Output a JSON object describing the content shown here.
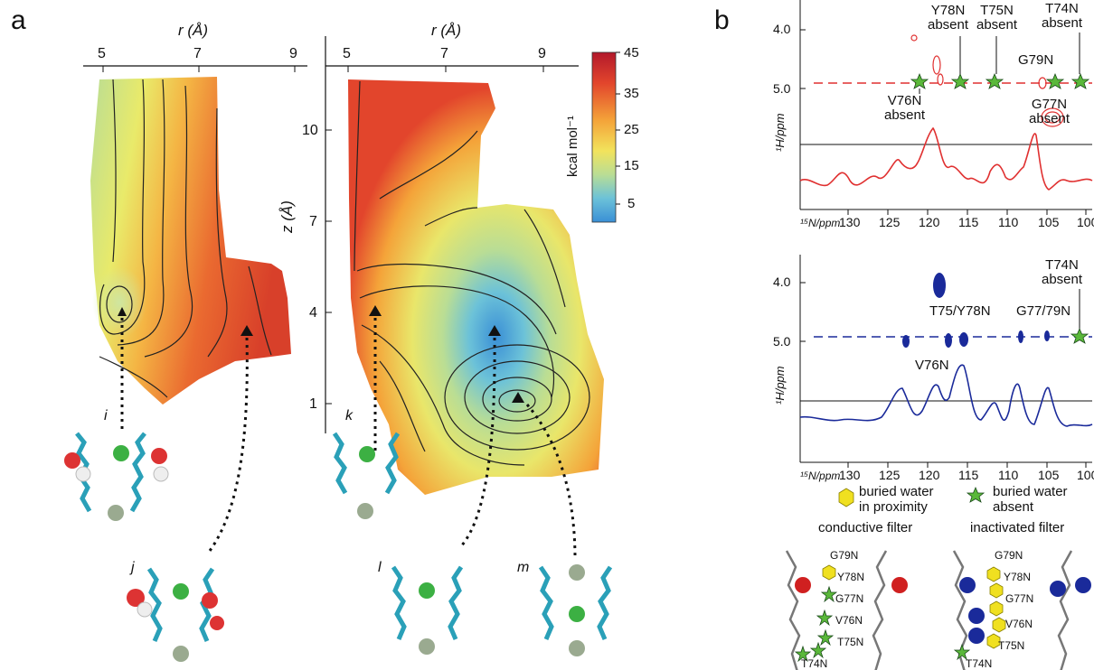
{
  "panel_labels": {
    "a": "a",
    "b": "b"
  },
  "left_panel": {
    "r_label": "r (Å)",
    "r_ticks": [
      "5",
      "7",
      "9"
    ],
    "z_label": "z (Å)",
    "z_ticks": [
      "10",
      "7",
      "4",
      "1"
    ],
    "map_labels": [
      "i",
      "j",
      "k",
      "l",
      "m"
    ],
    "colorbar": {
      "title": "kcal mol⁻¹",
      "ticks": [
        "45",
        "35",
        "25",
        "15",
        "5"
      ],
      "colors": [
        "#b2182b",
        "#e2452c",
        "#f4a339",
        "#f2e35c",
        "#b9dd95",
        "#6cc2d8",
        "#3a8fd6"
      ]
    }
  },
  "nmr": {
    "top": {
      "color": "#e03030",
      "annotations": [
        {
          "text": "Y78N\nabsent"
        },
        {
          "text": "T75N\nabsent"
        },
        {
          "text": "T74N\nabsent"
        },
        {
          "text": "G79N"
        },
        {
          "text": "V76N\nabsent"
        },
        {
          "text": "G77N\nabsent"
        }
      ],
      "y_ticks": [
        "4.0",
        "5.0"
      ],
      "y_axis_label": "¹H/ppm",
      "x_axis_label": "¹⁵N/ppm",
      "x_ticks": [
        "130",
        "125",
        "120",
        "115",
        "110",
        "105",
        "100"
      ]
    },
    "bottom": {
      "color": "#1a2a9a",
      "annotations": [
        {
          "text": "T74N\nabsent"
        },
        {
          "text": "T75/Y78N"
        },
        {
          "text": "G77/79N"
        },
        {
          "text": "V76N"
        }
      ],
      "y_ticks": [
        "4.0",
        "5.0"
      ],
      "y_axis_label": "¹H/ppm",
      "x_axis_label": "¹⁵N/ppm",
      "x_ticks": [
        "130",
        "125",
        "120",
        "115",
        "110",
        "105",
        "100"
      ]
    },
    "legend": {
      "water_present": "buried water\nin proximity",
      "water_absent": "buried water\nabsent",
      "conductive": "conductive filter",
      "inactivated": "inactivated filter"
    },
    "struct_labels_left": [
      "G79N",
      "Y78N",
      "G77N",
      "V76N",
      "T75N",
      "T74N"
    ],
    "struct_labels_right": [
      "G79N",
      "Y78N",
      "G77N",
      "V76N",
      "T75N",
      "T74N"
    ]
  }
}
